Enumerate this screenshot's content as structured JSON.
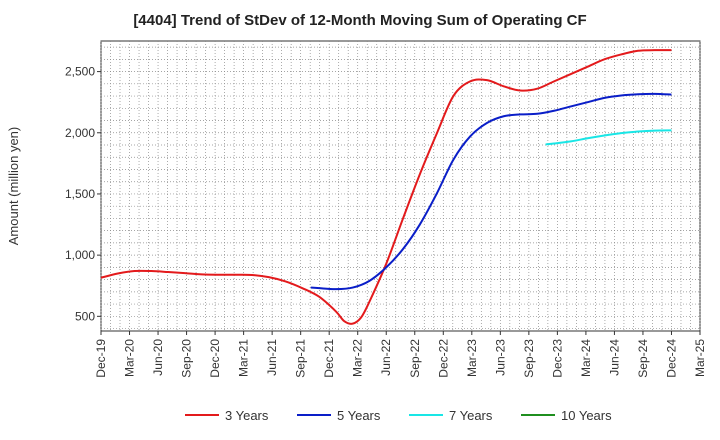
{
  "chart_data": {
    "type": "line",
    "title": "[4404]  Trend of StDev of 12-Month Moving Sum of Operating CF",
    "xlabel": "",
    "ylabel": "Amount (million yen)",
    "ylim": [
      380,
      2750
    ],
    "yticks": [
      500,
      1000,
      1500,
      2000,
      2500
    ],
    "ytick_labels": [
      "500",
      "1,000",
      "1,500",
      "2,000",
      "2,500"
    ],
    "x_tick_labels": [
      "Dec-19",
      "Mar-20",
      "Jun-20",
      "Sep-20",
      "Dec-20",
      "Mar-21",
      "Jun-21",
      "Sep-21",
      "Dec-21",
      "Mar-22",
      "Jun-22",
      "Sep-22",
      "Dec-22",
      "Mar-23",
      "Jun-23",
      "Sep-23",
      "Dec-23",
      "Mar-24",
      "Jun-24",
      "Sep-24",
      "Dec-24",
      "Mar-25"
    ],
    "grid": true,
    "legend_position": "bottom",
    "series": [
      {
        "name": "3 Years",
        "color": "#e31a1c",
        "points": [
          [
            0,
            815
          ],
          [
            1,
            850
          ],
          [
            2,
            870
          ],
          [
            3,
            870
          ],
          [
            4,
            862
          ],
          [
            5,
            853
          ],
          [
            6,
            843
          ],
          [
            7,
            840
          ],
          [
            8,
            840
          ],
          [
            9,
            838
          ],
          [
            10,
            820
          ],
          [
            11,
            785
          ],
          [
            12,
            730
          ],
          [
            13,
            660
          ],
          [
            14,
            540
          ],
          [
            14.5,
            460
          ],
          [
            15,
            440
          ],
          [
            15.5,
            490
          ],
          [
            16,
            620
          ],
          [
            17,
            930
          ],
          [
            18,
            1300
          ],
          [
            19,
            1660
          ],
          [
            20,
            1990
          ],
          [
            21,
            2300
          ],
          [
            22,
            2420
          ],
          [
            23,
            2430
          ],
          [
            24,
            2380
          ],
          [
            25,
            2345
          ],
          [
            26,
            2360
          ],
          [
            27,
            2420
          ],
          [
            28,
            2480
          ],
          [
            29,
            2540
          ],
          [
            30,
            2600
          ],
          [
            31,
            2640
          ],
          [
            32,
            2670
          ],
          [
            33,
            2675
          ],
          [
            34,
            2675
          ]
        ]
      },
      {
        "name": "5 Years",
        "color": "#0a1ec8",
        "points": [
          [
            12.5,
            735
          ],
          [
            13,
            730
          ],
          [
            14,
            722
          ],
          [
            15,
            735
          ],
          [
            16,
            790
          ],
          [
            17,
            900
          ],
          [
            18,
            1050
          ],
          [
            19,
            1250
          ],
          [
            20,
            1500
          ],
          [
            21,
            1780
          ],
          [
            22,
            1970
          ],
          [
            23,
            2080
          ],
          [
            24,
            2135
          ],
          [
            25,
            2150
          ],
          [
            26,
            2155
          ],
          [
            27,
            2180
          ],
          [
            28,
            2215
          ],
          [
            29,
            2250
          ],
          [
            30,
            2285
          ],
          [
            31,
            2305
          ],
          [
            32,
            2315
          ],
          [
            33,
            2318
          ],
          [
            34,
            2312
          ]
        ]
      },
      {
        "name": "7 Years",
        "color": "#19e6e6",
        "points": [
          [
            26.5,
            1905
          ],
          [
            27,
            1912
          ],
          [
            28,
            1930
          ],
          [
            29,
            1955
          ],
          [
            30,
            1978
          ],
          [
            31,
            1997
          ],
          [
            32,
            2010
          ],
          [
            33,
            2018
          ],
          [
            34,
            2020
          ]
        ]
      },
      {
        "name": "10 Years",
        "color": "#1f8f1f",
        "points": []
      }
    ]
  }
}
